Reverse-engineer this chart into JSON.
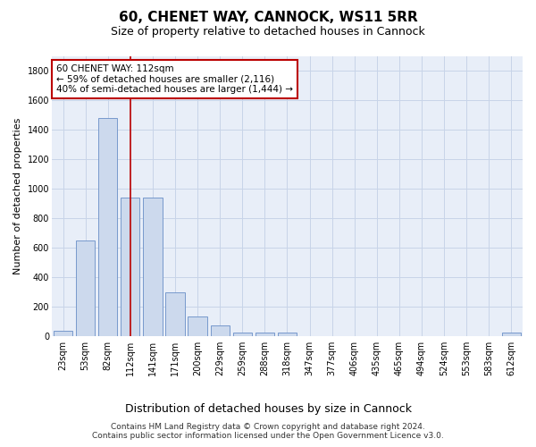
{
  "title1": "60, CHENET WAY, CANNOCK, WS11 5RR",
  "title2": "Size of property relative to detached houses in Cannock",
  "xlabel": "Distribution of detached houses by size in Cannock",
  "ylabel": "Number of detached properties",
  "bar_color": "#ccd9ed",
  "bar_edge_color": "#7799cc",
  "categories": [
    "23sqm",
    "53sqm",
    "82sqm",
    "112sqm",
    "141sqm",
    "171sqm",
    "200sqm",
    "229sqm",
    "259sqm",
    "288sqm",
    "318sqm",
    "347sqm",
    "377sqm",
    "406sqm",
    "435sqm",
    "465sqm",
    "494sqm",
    "524sqm",
    "553sqm",
    "583sqm",
    "612sqm"
  ],
  "values": [
    35,
    650,
    1480,
    940,
    940,
    295,
    130,
    70,
    25,
    20,
    20,
    0,
    0,
    0,
    0,
    0,
    0,
    0,
    0,
    0,
    20
  ],
  "vline_x": 3,
  "vline_color": "#bb0000",
  "annotation_text": "60 CHENET WAY: 112sqm\n← 59% of detached houses are smaller (2,116)\n40% of semi-detached houses are larger (1,444) →",
  "annotation_box_color": "#ffffff",
  "annotation_box_edge_color": "#bb0000",
  "ylim": [
    0,
    1900
  ],
  "yticks": [
    0,
    200,
    400,
    600,
    800,
    1000,
    1200,
    1400,
    1600,
    1800
  ],
  "grid_color": "#c8d4e8",
  "bg_color": "#e8eef8",
  "footnote": "Contains HM Land Registry data © Crown copyright and database right 2024.\nContains public sector information licensed under the Open Government Licence v3.0.",
  "title1_fontsize": 11,
  "title2_fontsize": 9,
  "xlabel_fontsize": 9,
  "ylabel_fontsize": 8,
  "tick_fontsize": 7,
  "annotation_fontsize": 7.5,
  "footnote_fontsize": 6.5
}
